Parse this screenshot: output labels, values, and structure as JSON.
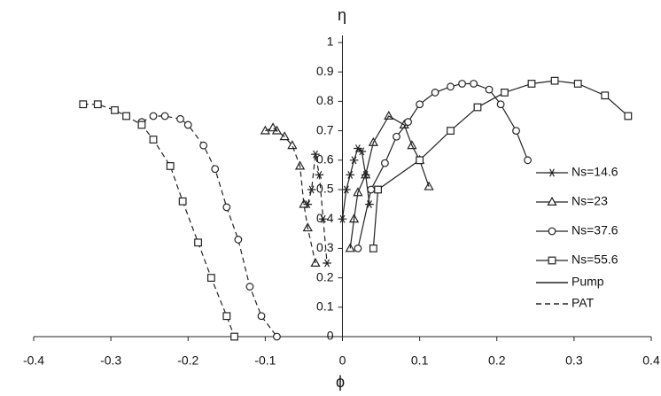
{
  "chart_data": {
    "type": "line",
    "y_label": "η",
    "x_label": "ϕ",
    "xlim": [
      -0.4,
      0.4
    ],
    "ylim": [
      0,
      1
    ],
    "xticks": [
      -0.4,
      -0.3,
      -0.2,
      -0.1,
      0,
      0.1,
      0.2,
      0.3,
      0.4
    ],
    "yticks": [
      0,
      0.1,
      0.2,
      0.3,
      0.4,
      0.5,
      0.6,
      0.7,
      0.8,
      0.9,
      1
    ],
    "color": "#222222",
    "line_styles": [
      {
        "name": "Pump",
        "dash": "solid"
      },
      {
        "name": "PAT",
        "dash": "dashed"
      }
    ],
    "series": [
      {
        "name": "Ns=14.6",
        "marker": "asterisk",
        "pump_x": [
          0.0,
          0.005,
          0.01,
          0.015,
          0.02,
          0.025,
          0.03,
          0.035
        ],
        "pump_values": [
          0.4,
          0.5,
          0.55,
          0.6,
          0.64,
          0.63,
          0.55,
          0.45
        ],
        "pat_x": [
          -0.045,
          -0.04,
          -0.035,
          -0.03,
          -0.025,
          -0.02
        ],
        "pat_values": [
          0.45,
          0.5,
          0.62,
          0.55,
          0.4,
          0.25
        ]
      },
      {
        "name": "Ns=23",
        "marker": "triangle",
        "pump_x": [
          0.01,
          0.015,
          0.02,
          0.03,
          0.04,
          0.06,
          0.08,
          0.09,
          0.1,
          0.112
        ],
        "pump_values": [
          0.3,
          0.4,
          0.49,
          0.55,
          0.66,
          0.75,
          0.72,
          0.65,
          0.6,
          0.51
        ],
        "pat_x": [
          -0.1,
          -0.09,
          -0.085,
          -0.075,
          -0.065,
          -0.055,
          -0.05,
          -0.045,
          -0.035
        ],
        "pat_values": [
          0.7,
          0.71,
          0.7,
          0.68,
          0.65,
          0.58,
          0.45,
          0.37,
          0.25
        ]
      },
      {
        "name": "Ns=37.6",
        "marker": "circle",
        "pump_x": [
          0.02,
          0.037,
          0.055,
          0.07,
          0.085,
          0.1,
          0.12,
          0.14,
          0.155,
          0.17,
          0.19,
          0.205,
          0.225,
          0.24
        ],
        "pump_values": [
          0.3,
          0.5,
          0.59,
          0.68,
          0.73,
          0.79,
          0.83,
          0.85,
          0.86,
          0.86,
          0.84,
          0.79,
          0.7,
          0.6
        ],
        "pat_x": [
          -0.26,
          -0.245,
          -0.23,
          -0.21,
          -0.2,
          -0.18,
          -0.165,
          -0.15,
          -0.135,
          -0.12,
          -0.105,
          -0.085
        ],
        "pat_values": [
          0.73,
          0.75,
          0.75,
          0.74,
          0.72,
          0.65,
          0.57,
          0.44,
          0.33,
          0.17,
          0.07,
          0.0
        ]
      },
      {
        "name": "Ns=55.6",
        "marker": "square",
        "pump_x": [
          0.04,
          0.046,
          0.1,
          0.14,
          0.175,
          0.21,
          0.245,
          0.275,
          0.305,
          0.34,
          0.37
        ],
        "pump_values": [
          0.3,
          0.5,
          0.6,
          0.7,
          0.78,
          0.83,
          0.86,
          0.87,
          0.86,
          0.82,
          0.75
        ],
        "pat_x": [
          -0.336,
          -0.317,
          -0.295,
          -0.28,
          -0.26,
          -0.245,
          -0.223,
          -0.207,
          -0.187,
          -0.17,
          -0.15,
          -0.14
        ],
        "pat_values": [
          0.79,
          0.79,
          0.77,
          0.75,
          0.72,
          0.67,
          0.58,
          0.46,
          0.32,
          0.2,
          0.07,
          0.0
        ]
      }
    ]
  }
}
